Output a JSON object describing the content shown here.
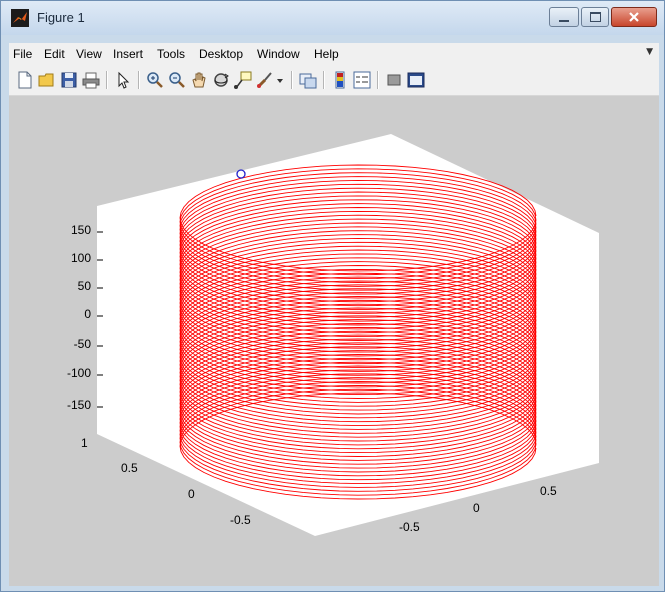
{
  "window": {
    "title": "Figure 1"
  },
  "menu": {
    "items": [
      "File",
      "Edit",
      "View",
      "Insert",
      "Tools",
      "Desktop",
      "Window",
      "Help"
    ]
  },
  "toolbar": {
    "buttons": [
      "new-figure-icon",
      "open-file-icon",
      "save-icon",
      "print-icon",
      "edit-plot-arrow-icon",
      "zoom-in-icon",
      "zoom-out-icon",
      "pan-hand-icon",
      "rotate-3d-icon",
      "data-cursor-icon",
      "brush-icon",
      "link-plot-icon",
      "colorbar-icon",
      "legend-icon",
      "hide-plot-tools-icon",
      "show-plot-tools-icon"
    ]
  },
  "colors": {
    "helix": "#ff0000",
    "marker": "#2222cc",
    "axes_bg": "#ffffff",
    "figure_bg": "#cccccc"
  },
  "chart_data": {
    "type": "line",
    "subtype": "3d-helix",
    "z_ticks": [
      "150",
      "100",
      "50",
      "0",
      "-50",
      "-100",
      "-150"
    ],
    "y_ticks": [
      "1",
      "0.5",
      "0",
      "-0.5"
    ],
    "x_ticks": [
      "0.5",
      "0",
      "-0.5"
    ],
    "zlim": [
      -180,
      180
    ],
    "xlim": [
      -1,
      1
    ],
    "ylim": [
      -1,
      1
    ],
    "grid": false,
    "series": [
      {
        "style": "red solid line, circular coil of radius 1",
        "z_range": [
          -180,
          180
        ],
        "turns": 60
      }
    ],
    "marker": {
      "symbol": "o",
      "color": "blue"
    }
  }
}
